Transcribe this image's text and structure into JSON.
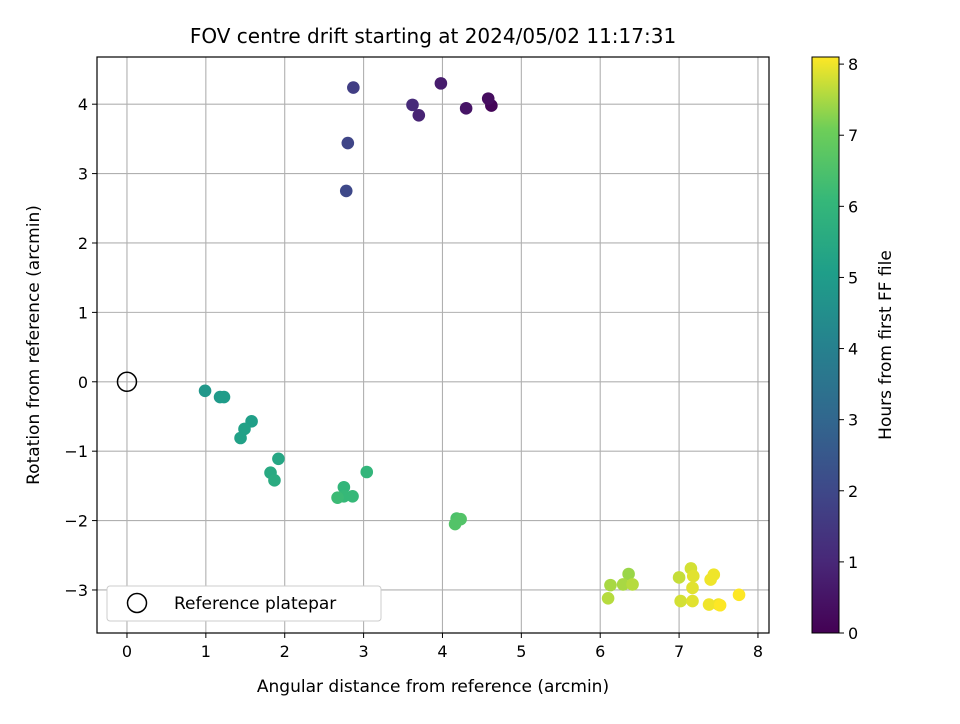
{
  "chart_data": {
    "type": "scatter",
    "title": "FOV centre drift starting at 2024/05/02 11:17:31",
    "xlabel": "Angular distance from reference (arcmin)",
    "ylabel": "Rotation from reference (arcmin)",
    "xlim": [
      -0.38,
      8.14
    ],
    "ylim": [
      -3.62,
      4.68
    ],
    "xticks": [
      0,
      1,
      2,
      3,
      4,
      5,
      6,
      7,
      8
    ],
    "yticks": [
      -3,
      -2,
      -1,
      0,
      1,
      2,
      3,
      4
    ],
    "xtick_labels": [
      "0",
      "1",
      "2",
      "3",
      "4",
      "5",
      "6",
      "7",
      "8"
    ],
    "ytick_labels": [
      "−3",
      "−2",
      "−1",
      "0",
      "1",
      "2",
      "3",
      "4"
    ],
    "grid": true,
    "colormap": "viridis",
    "colorbar": {
      "label": "Hours from first FF file",
      "lim": [
        0,
        8.1
      ],
      "ticks": [
        0,
        1,
        2,
        3,
        4,
        5,
        6,
        7,
        8
      ],
      "tick_labels": [
        "0",
        "1",
        "2",
        "3",
        "4",
        "5",
        "6",
        "7",
        "8"
      ]
    },
    "legend": {
      "position": "lower-left",
      "entries": [
        "Reference platepar"
      ]
    },
    "reference_point": {
      "x": 0,
      "y": 0
    },
    "points": [
      {
        "x": 4.62,
        "y": 3.98,
        "c": 0.1
      },
      {
        "x": 4.58,
        "y": 4.08,
        "c": 0.3
      },
      {
        "x": 4.3,
        "y": 3.94,
        "c": 0.5
      },
      {
        "x": 3.98,
        "y": 4.3,
        "c": 0.7
      },
      {
        "x": 3.7,
        "y": 3.84,
        "c": 0.9
      },
      {
        "x": 3.62,
        "y": 3.99,
        "c": 1.1
      },
      {
        "x": 2.87,
        "y": 4.24,
        "c": 1.7
      },
      {
        "x": 2.8,
        "y": 3.44,
        "c": 1.9
      },
      {
        "x": 2.78,
        "y": 2.75,
        "c": 2.0
      },
      {
        "x": 0.99,
        "y": -0.13,
        "c": 4.8
      },
      {
        "x": 1.18,
        "y": -0.22,
        "c": 4.9
      },
      {
        "x": 1.23,
        "y": -0.22,
        "c": 5.0
      },
      {
        "x": 1.58,
        "y": -0.57,
        "c": 5.1
      },
      {
        "x": 1.49,
        "y": -0.68,
        "c": 5.2
      },
      {
        "x": 1.44,
        "y": -0.81,
        "c": 5.2
      },
      {
        "x": 1.92,
        "y": -1.11,
        "c": 5.4
      },
      {
        "x": 1.82,
        "y": -1.31,
        "c": 5.5
      },
      {
        "x": 1.87,
        "y": -1.42,
        "c": 5.6
      },
      {
        "x": 3.04,
        "y": -1.3,
        "c": 6.0
      },
      {
        "x": 2.75,
        "y": -1.52,
        "c": 6.0
      },
      {
        "x": 2.75,
        "y": -1.65,
        "c": 6.1
      },
      {
        "x": 2.86,
        "y": -1.65,
        "c": 6.1
      },
      {
        "x": 2.67,
        "y": -1.67,
        "c": 6.2
      },
      {
        "x": 4.18,
        "y": -1.97,
        "c": 6.5
      },
      {
        "x": 4.23,
        "y": -1.98,
        "c": 6.6
      },
      {
        "x": 4.16,
        "y": -2.05,
        "c": 6.6
      },
      {
        "x": 6.36,
        "y": -2.77,
        "c": 7.4
      },
      {
        "x": 6.13,
        "y": -2.93,
        "c": 7.5
      },
      {
        "x": 6.29,
        "y": -2.92,
        "c": 7.5
      },
      {
        "x": 6.41,
        "y": -2.92,
        "c": 7.6
      },
      {
        "x": 6.1,
        "y": -3.12,
        "c": 7.6
      },
      {
        "x": 7.0,
        "y": -2.82,
        "c": 7.7
      },
      {
        "x": 7.02,
        "y": -3.16,
        "c": 7.8
      },
      {
        "x": 7.15,
        "y": -2.69,
        "c": 7.8
      },
      {
        "x": 7.18,
        "y": -2.8,
        "c": 7.9
      },
      {
        "x": 7.17,
        "y": -2.97,
        "c": 7.9
      },
      {
        "x": 7.17,
        "y": -3.16,
        "c": 7.9
      },
      {
        "x": 7.44,
        "y": -2.78,
        "c": 8.0
      },
      {
        "x": 7.4,
        "y": -2.85,
        "c": 8.0
      },
      {
        "x": 7.38,
        "y": -3.21,
        "c": 8.0
      },
      {
        "x": 7.5,
        "y": -3.21,
        "c": 8.0
      },
      {
        "x": 7.52,
        "y": -3.22,
        "c": 8.1
      },
      {
        "x": 7.76,
        "y": -3.07,
        "c": 8.1
      }
    ]
  }
}
